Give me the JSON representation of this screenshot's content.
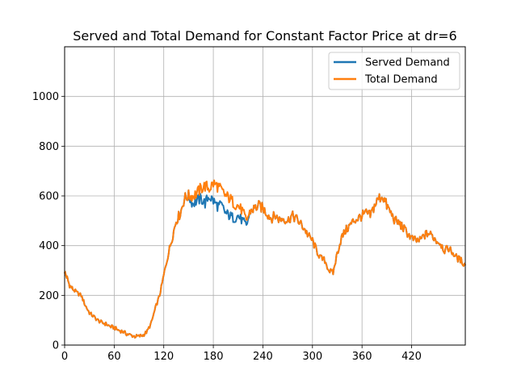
{
  "chart_data": {
    "type": "line",
    "title": "Served and Total Demand for Constant Factor Price at dr=6",
    "xlabel": "",
    "ylabel": "",
    "xlim": [
      0,
      485
    ],
    "ylim": [
      0,
      1200
    ],
    "xticks": [
      0,
      60,
      120,
      180,
      240,
      300,
      360,
      420
    ],
    "yticks": [
      0,
      200,
      400,
      600,
      800,
      1000
    ],
    "grid": true,
    "legend_position": "top-right",
    "series": [
      {
        "name": "Served Demand",
        "color": "#1f77b4",
        "x": [
          0,
          3,
          6,
          10,
          15,
          20,
          25,
          30,
          35,
          40,
          45,
          50,
          55,
          60,
          65,
          70,
          75,
          80,
          85,
          90,
          95,
          100,
          105,
          110,
          115,
          120,
          125,
          130,
          135,
          140,
          145,
          150,
          155,
          160,
          165,
          170,
          175,
          180,
          185,
          190,
          195,
          200,
          205,
          210,
          215,
          220,
          225,
          230,
          235,
          240,
          245,
          250,
          255,
          260,
          265,
          270,
          275,
          280,
          285,
          290,
          295,
          300,
          305,
          310,
          315,
          320,
          325,
          330,
          335,
          340,
          345,
          350,
          355,
          360,
          365,
          370,
          375,
          380,
          385,
          390,
          395,
          400,
          405,
          410,
          415,
          420,
          425,
          430,
          435,
          440,
          445,
          450,
          455,
          460,
          465,
          470,
          475,
          480,
          485
        ],
        "y": [
          295,
          270,
          240,
          225,
          210,
          200,
          160,
          130,
          115,
          100,
          90,
          85,
          75,
          70,
          60,
          55,
          45,
          40,
          35,
          35,
          40,
          55,
          90,
          150,
          200,
          280,
          360,
          430,
          500,
          530,
          590,
          600,
          570,
          580,
          590,
          570,
          600,
          580,
          560,
          560,
          530,
          520,
          510,
          520,
          500,
          480,
          540,
          550,
          560,
          550,
          530,
          510,
          520,
          505,
          510,
          500,
          520,
          510,
          490,
          470,
          440,
          420,
          380,
          350,
          340,
          300,
          290,
          370,
          430,
          460,
          480,
          500,
          510,
          520,
          530,
          520,
          560,
          590,
          600,
          560,
          530,
          500,
          490,
          470,
          450,
          430,
          420,
          420,
          440,
          450,
          440,
          420,
          410,
          380,
          390,
          370,
          350,
          340,
          320
        ]
      },
      {
        "name": "Total Demand",
        "color": "#ff7f0e",
        "x": [
          0,
          3,
          6,
          10,
          15,
          20,
          25,
          30,
          35,
          40,
          45,
          50,
          55,
          60,
          65,
          70,
          75,
          80,
          85,
          90,
          95,
          100,
          105,
          110,
          115,
          120,
          125,
          130,
          135,
          140,
          145,
          150,
          155,
          160,
          165,
          170,
          175,
          180,
          185,
          190,
          195,
          200,
          205,
          210,
          215,
          220,
          225,
          230,
          235,
          240,
          245,
          250,
          255,
          260,
          265,
          270,
          275,
          280,
          285,
          290,
          295,
          300,
          305,
          310,
          315,
          320,
          325,
          330,
          335,
          340,
          345,
          350,
          355,
          360,
          365,
          370,
          375,
          380,
          385,
          390,
          395,
          400,
          405,
          410,
          415,
          420,
          425,
          430,
          435,
          440,
          445,
          450,
          455,
          460,
          465,
          470,
          475,
          480,
          485
        ],
        "y": [
          295,
          270,
          240,
          225,
          210,
          200,
          160,
          130,
          115,
          100,
          90,
          85,
          75,
          70,
          60,
          55,
          45,
          40,
          35,
          35,
          40,
          55,
          90,
          150,
          200,
          280,
          360,
          430,
          500,
          530,
          590,
          600,
          600,
          610,
          630,
          640,
          630,
          650,
          640,
          620,
          600,
          590,
          570,
          560,
          540,
          500,
          540,
          550,
          560,
          550,
          530,
          510,
          520,
          505,
          510,
          500,
          520,
          510,
          490,
          470,
          440,
          420,
          380,
          350,
          340,
          300,
          290,
          370,
          430,
          460,
          480,
          500,
          510,
          520,
          530,
          520,
          560,
          590,
          600,
          560,
          530,
          500,
          490,
          470,
          450,
          430,
          420,
          420,
          440,
          450,
          440,
          420,
          410,
          380,
          390,
          370,
          350,
          340,
          320
        ]
      }
    ]
  }
}
